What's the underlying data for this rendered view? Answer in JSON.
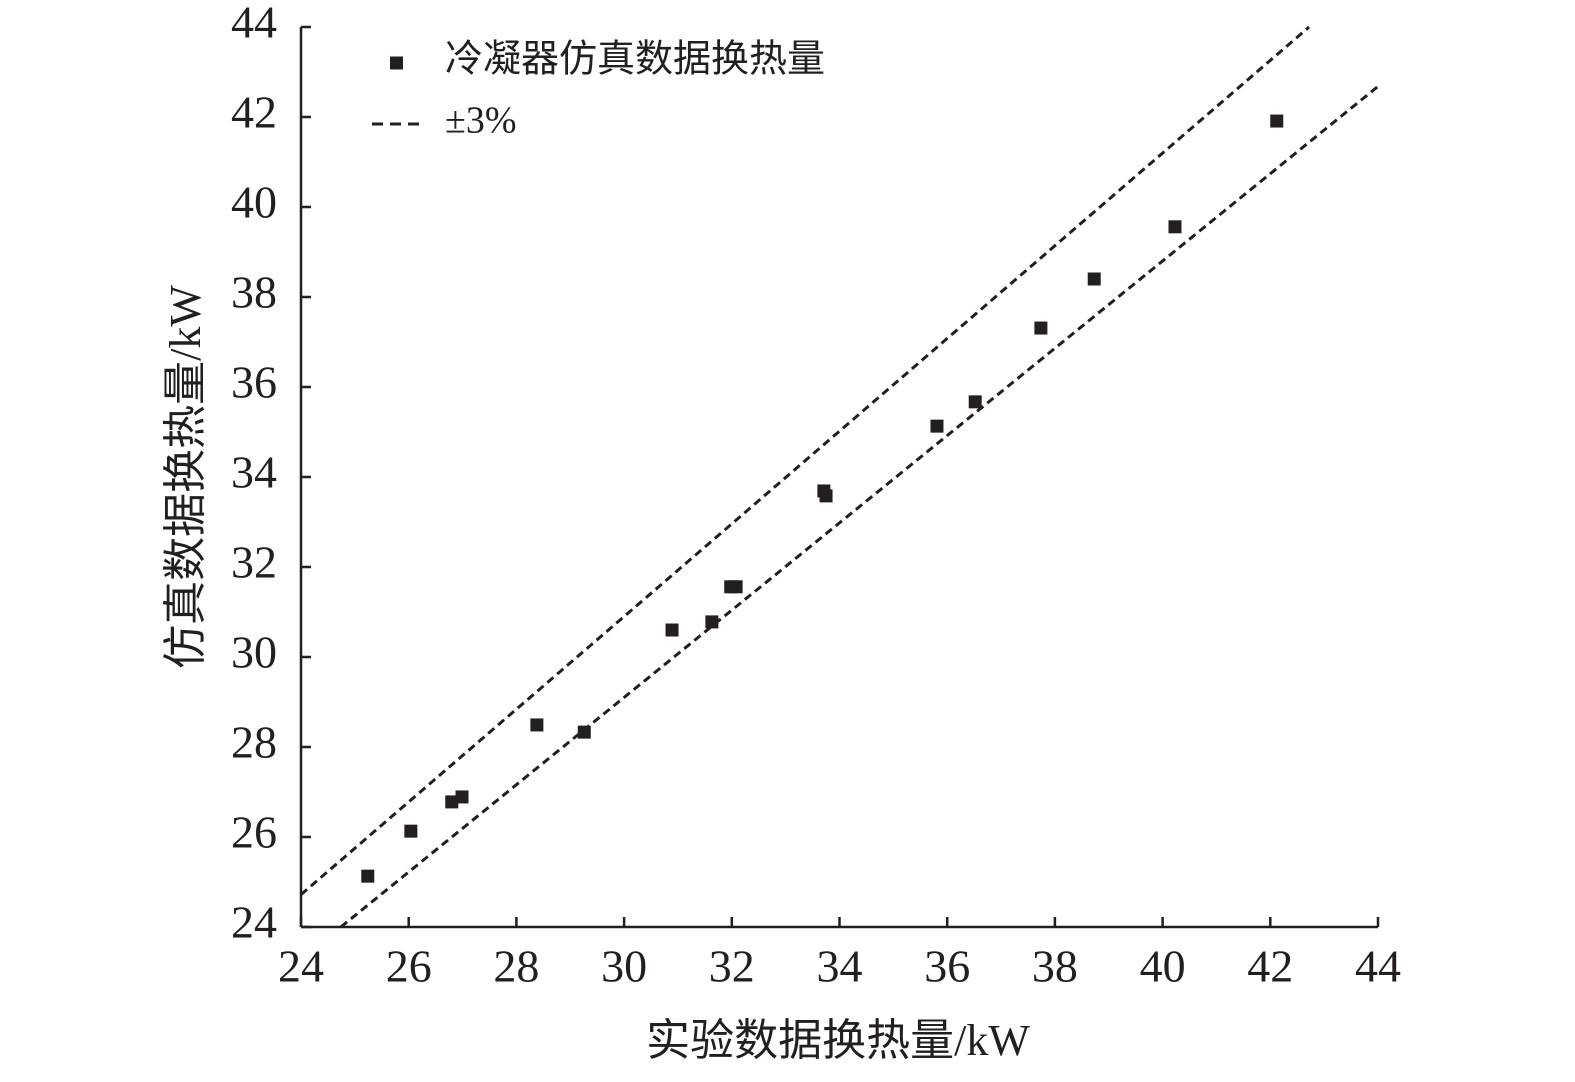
{
  "chart_data": {
    "type": "scatter",
    "xlabel": "实验数据换热量/kW",
    "ylabel": "仿真数据换热量/kW",
    "xlim": [
      24,
      44
    ],
    "ylim": [
      24,
      44
    ],
    "xticks": [
      24,
      26,
      28,
      30,
      32,
      34,
      36,
      38,
      40,
      42,
      44
    ],
    "yticks": [
      24,
      26,
      28,
      30,
      32,
      34,
      36,
      38,
      40,
      42,
      44
    ],
    "legend": "upper left",
    "series": [
      {
        "name": "冷凝器仿真数据换热量",
        "color": "#231f20",
        "marker": "square",
        "x": [
          25.24,
          26.04,
          26.8,
          26.99,
          28.38,
          29.26,
          30.89,
          31.63,
          31.98,
          32.08,
          33.71,
          33.75,
          35.81,
          36.52,
          37.74,
          38.73,
          40.23,
          42.12
        ],
        "values": [
          25.13,
          26.13,
          26.78,
          26.89,
          28.49,
          28.33,
          30.6,
          30.78,
          31.56,
          31.56,
          33.69,
          33.58,
          35.13,
          35.67,
          37.31,
          38.4,
          39.56,
          41.91
        ]
      },
      {
        "name": "±3%",
        "color": "#231f20",
        "dashed": true,
        "lines": [
          {
            "x": [
              24,
              42.72
            ],
            "values": [
              24.72,
              44
            ]
          },
          {
            "x": [
              24.74,
              44
            ],
            "values": [
              24,
              42.68
            ]
          }
        ]
      }
    ]
  }
}
